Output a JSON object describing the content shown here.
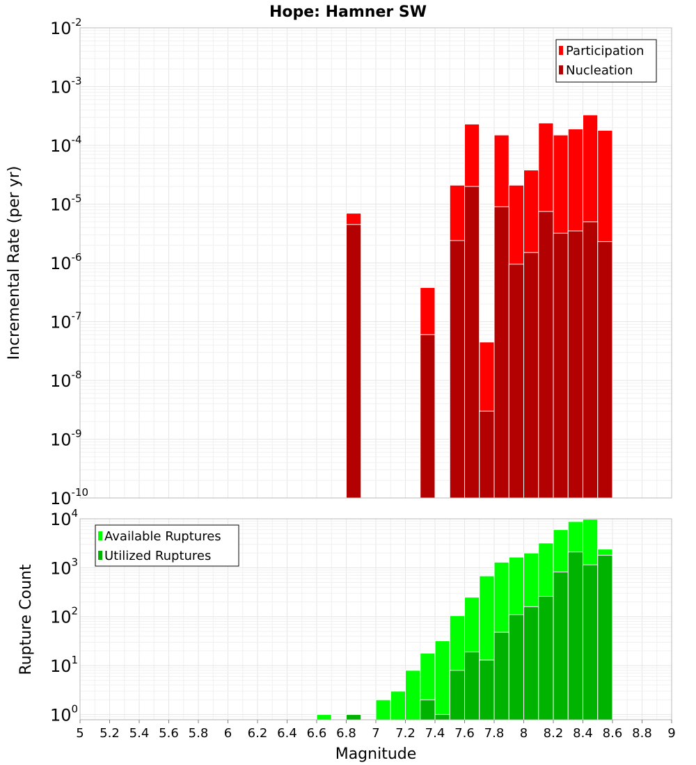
{
  "chart_data": [
    {
      "type": "bar",
      "title": "Hope: Hamner SW",
      "xlabel": "",
      "ylabel": "Incremental Rate (per yr)",
      "yscale": "log",
      "ylim": [
        1e-10,
        0.01
      ],
      "xlim": [
        5,
        9
      ],
      "grid": true,
      "legend_position": "top-right",
      "y_ticks": [
        {
          "base": "10",
          "exp": "-10"
        },
        {
          "base": "10",
          "exp": "-9"
        },
        {
          "base": "10",
          "exp": "-8"
        },
        {
          "base": "10",
          "exp": "-7"
        },
        {
          "base": "10",
          "exp": "-6"
        },
        {
          "base": "10",
          "exp": "-5"
        },
        {
          "base": "10",
          "exp": "-4"
        },
        {
          "base": "10",
          "exp": "-3"
        },
        {
          "base": "10",
          "exp": "-2"
        }
      ],
      "x": [
        6.85,
        7.35,
        7.55,
        7.65,
        7.75,
        7.85,
        7.95,
        8.05,
        8.15,
        8.25,
        8.35,
        8.45,
        8.55
      ],
      "series": [
        {
          "name": "Participation",
          "color": "#ff0000",
          "values": [
            7e-06,
            3.8e-07,
            2.1e-05,
            0.00023,
            4.5e-08,
            0.00015,
            2.1e-05,
            3.8e-05,
            0.00024,
            0.00015,
            0.00019,
            0.00033,
            0.00018
          ]
        },
        {
          "name": "Nucleation",
          "color": "#b30000",
          "values": [
            4.5e-06,
            6e-08,
            2.4e-06,
            2e-05,
            3e-09,
            9e-06,
            9.5e-07,
            1.5e-06,
            7.5e-06,
            3.2e-06,
            3.5e-06,
            5e-06,
            2.3e-06
          ]
        }
      ]
    },
    {
      "type": "bar",
      "xlabel": "Magnitude",
      "ylabel": "Rupture Count",
      "yscale": "log",
      "ylim": [
        0.78,
        10000
      ],
      "xlim": [
        5,
        9
      ],
      "grid": true,
      "legend_position": "top-left",
      "y_ticks": [
        {
          "base": "10",
          "exp": "0"
        },
        {
          "base": "10",
          "exp": "1"
        },
        {
          "base": "10",
          "exp": "2"
        },
        {
          "base": "10",
          "exp": "3"
        },
        {
          "base": "10",
          "exp": "4"
        }
      ],
      "x_ticks": [
        "5",
        "5.2",
        "5.4",
        "5.6",
        "5.8",
        "6",
        "6.2",
        "6.4",
        "6.6",
        "6.8",
        "7",
        "7.2",
        "7.4",
        "7.6",
        "7.8",
        "8",
        "8.2",
        "8.4",
        "8.6",
        "8.8",
        "9"
      ],
      "x": [
        6.65,
        6.85,
        7.05,
        7.15,
        7.25,
        7.35,
        7.45,
        7.55,
        7.65,
        7.75,
        7.85,
        7.95,
        8.05,
        8.15,
        8.25,
        8.35,
        8.45,
        8.55
      ],
      "series": [
        {
          "name": "Available Ruptures",
          "color": "#00ff00",
          "values": [
            1,
            1,
            2,
            3,
            8,
            18,
            32,
            105,
            250,
            680,
            1300,
            1650,
            2000,
            3200,
            6000,
            8800,
            9800,
            2400
          ]
        },
        {
          "name": "Utilized Ruptures",
          "color": "#00b300",
          "values": [
            0,
            1,
            0,
            0,
            0,
            2,
            1,
            8,
            19,
            13,
            48,
            110,
            160,
            260,
            820,
            2100,
            1150,
            1800
          ]
        }
      ]
    }
  ]
}
